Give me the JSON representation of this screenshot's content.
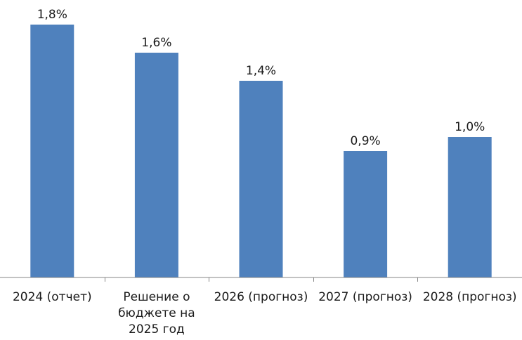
{
  "chart_data": {
    "type": "bar",
    "categories": [
      [
        "2024 (отчет)"
      ],
      [
        "Решение о",
        "бюджете на",
        "2025 год"
      ],
      [
        "2026 (прогноз)"
      ],
      [
        "2027 (прогноз)"
      ],
      [
        "2028 (прогноз)"
      ]
    ],
    "values": [
      1.8,
      1.6,
      1.4,
      0.9,
      1.0
    ],
    "value_labels": [
      "1,8%",
      "1,6%",
      "1,4%",
      "0,9%",
      "1,0%"
    ],
    "title": "",
    "xlabel": "",
    "ylabel": "",
    "ylim": [
      0,
      1.8
    ],
    "grid": false,
    "legend": "none",
    "colors": {
      "bar": "#4f81bd",
      "axis": "#868686"
    }
  }
}
